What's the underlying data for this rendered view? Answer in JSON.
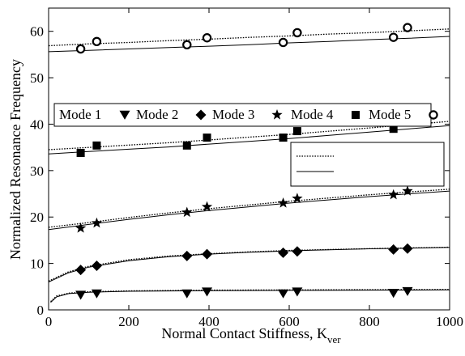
{
  "chart_data": {
    "type": "scatter",
    "title": "",
    "xlabel": "Normal Contact Stiffness, K",
    "xlabel_sub": "ver",
    "ylabel": "Normalized Resonance Frequency",
    "xlim": [
      0,
      1000
    ],
    "ylim": [
      0,
      65
    ],
    "xticks": [
      0,
      200,
      400,
      600,
      800,
      1000
    ],
    "yticks": [
      0,
      10,
      20,
      30,
      40,
      50,
      60
    ],
    "grid": false,
    "legend_mode": {
      "placement": "upper-middle",
      "entries": [
        "Mode 1",
        "Mode 2",
        "Mode 3",
        "Mode 4",
        "Mode 5"
      ]
    },
    "legend_lines": {
      "placement": "center-right",
      "entries": [
        {
          "style": "dotted",
          "label": ""
        },
        {
          "style": "solid",
          "label": ""
        }
      ]
    },
    "series": [
      {
        "name": "Mode 1",
        "marker": "triangle-down",
        "x": [
          80,
          120,
          345,
          395,
          585,
          620,
          860,
          895
        ],
        "y": [
          3.2,
          3.5,
          3.5,
          3.9,
          3.5,
          3.9,
          3.6,
          4.0
        ],
        "dotted_curve": [
          [
            5,
            1.8
          ],
          [
            20,
            3.0
          ],
          [
            50,
            3.6
          ],
          [
            100,
            3.9
          ],
          [
            200,
            4.1
          ],
          [
            400,
            4.25
          ],
          [
            600,
            4.3
          ],
          [
            800,
            4.35
          ],
          [
            1000,
            4.4
          ]
        ],
        "solid_curve": [
          [
            5,
            1.6
          ],
          [
            20,
            2.8
          ],
          [
            50,
            3.5
          ],
          [
            100,
            3.8
          ],
          [
            200,
            4.0
          ],
          [
            400,
            4.15
          ],
          [
            600,
            4.2
          ],
          [
            800,
            4.25
          ],
          [
            1000,
            4.3
          ]
        ]
      },
      {
        "name": "Mode 2",
        "marker": "diamond",
        "x": [
          80,
          120,
          345,
          395,
          585,
          620,
          860,
          895
        ],
        "y": [
          8.6,
          9.5,
          11.6,
          12.0,
          12.3,
          12.6,
          13.0,
          13.2
        ],
        "dotted_curve": [
          [
            0,
            6.2
          ],
          [
            50,
            8.2
          ],
          [
            100,
            9.4
          ],
          [
            200,
            10.8
          ],
          [
            300,
            11.6
          ],
          [
            400,
            12.1
          ],
          [
            500,
            12.5
          ],
          [
            600,
            12.8
          ],
          [
            700,
            13.0
          ],
          [
            800,
            13.2
          ],
          [
            900,
            13.35
          ],
          [
            1000,
            13.5
          ]
        ],
        "solid_curve": [
          [
            0,
            6.0
          ],
          [
            50,
            8.0
          ],
          [
            100,
            9.2
          ],
          [
            200,
            10.6
          ],
          [
            300,
            11.45
          ],
          [
            400,
            12.0
          ],
          [
            500,
            12.4
          ],
          [
            600,
            12.7
          ],
          [
            700,
            12.95
          ],
          [
            800,
            13.15
          ],
          [
            900,
            13.3
          ],
          [
            1000,
            13.45
          ]
        ]
      },
      {
        "name": "Mode 3",
        "marker": "star",
        "x": [
          80,
          120,
          345,
          395,
          585,
          620,
          860,
          895
        ],
        "y": [
          17.6,
          18.7,
          21.0,
          22.2,
          23.0,
          24.0,
          24.8,
          25.6
        ],
        "dotted_curve": [
          [
            0,
            17.8
          ],
          [
            100,
            18.8
          ],
          [
            200,
            19.9
          ],
          [
            300,
            20.9
          ],
          [
            400,
            21.8
          ],
          [
            500,
            22.6
          ],
          [
            600,
            23.4
          ],
          [
            700,
            24.1
          ],
          [
            800,
            24.8
          ],
          [
            900,
            25.4
          ],
          [
            1000,
            26.0
          ]
        ],
        "solid_curve": [
          [
            0,
            17.3
          ],
          [
            100,
            18.4
          ],
          [
            200,
            19.5
          ],
          [
            300,
            20.5
          ],
          [
            400,
            21.4
          ],
          [
            500,
            22.2
          ],
          [
            600,
            23.0
          ],
          [
            700,
            23.7
          ],
          [
            800,
            24.4
          ],
          [
            900,
            25.0
          ],
          [
            1000,
            25.6
          ]
        ]
      },
      {
        "name": "Mode 4",
        "marker": "square",
        "x": [
          80,
          120,
          345,
          395,
          585,
          620,
          860,
          895
        ],
        "y": [
          33.8,
          35.4,
          35.4,
          37.1,
          37.1,
          38.5,
          39.0,
          40.4
        ],
        "dotted_curve": [
          [
            0,
            34.5
          ],
          [
            100,
            35.0
          ],
          [
            200,
            35.5
          ],
          [
            300,
            36.0
          ],
          [
            400,
            36.6
          ],
          [
            500,
            37.2
          ],
          [
            600,
            37.8
          ],
          [
            700,
            38.5
          ],
          [
            800,
            39.2
          ],
          [
            900,
            39.9
          ],
          [
            1000,
            40.6
          ]
        ],
        "solid_curve": [
          [
            0,
            33.6
          ],
          [
            100,
            34.1
          ],
          [
            200,
            34.6
          ],
          [
            300,
            35.1
          ],
          [
            400,
            35.7
          ],
          [
            500,
            36.3
          ],
          [
            600,
            36.9
          ],
          [
            700,
            37.6
          ],
          [
            800,
            38.3
          ],
          [
            900,
            39.0
          ],
          [
            1000,
            39.7
          ]
        ]
      },
      {
        "name": "Mode 5",
        "marker": "circle-open",
        "x": [
          80,
          120,
          345,
          395,
          585,
          620,
          860,
          895
        ],
        "y": [
          56.2,
          57.8,
          57.1,
          58.6,
          57.6,
          59.7,
          58.7,
          60.8
        ],
        "dotted_curve": [
          [
            0,
            56.9
          ],
          [
            100,
            57.3
          ],
          [
            200,
            57.6
          ],
          [
            300,
            58.0
          ],
          [
            400,
            58.3
          ],
          [
            500,
            58.7
          ],
          [
            600,
            59.0
          ],
          [
            700,
            59.4
          ],
          [
            800,
            59.7
          ],
          [
            900,
            60.1
          ],
          [
            1000,
            60.5
          ]
        ],
        "solid_curve": [
          [
            0,
            55.6
          ],
          [
            100,
            55.9
          ],
          [
            200,
            56.2
          ],
          [
            300,
            56.5
          ],
          [
            400,
            56.8
          ],
          [
            500,
            57.1
          ],
          [
            600,
            57.5
          ],
          [
            700,
            57.8
          ],
          [
            800,
            58.2
          ],
          [
            900,
            58.5
          ],
          [
            1000,
            58.9
          ]
        ]
      }
    ]
  }
}
